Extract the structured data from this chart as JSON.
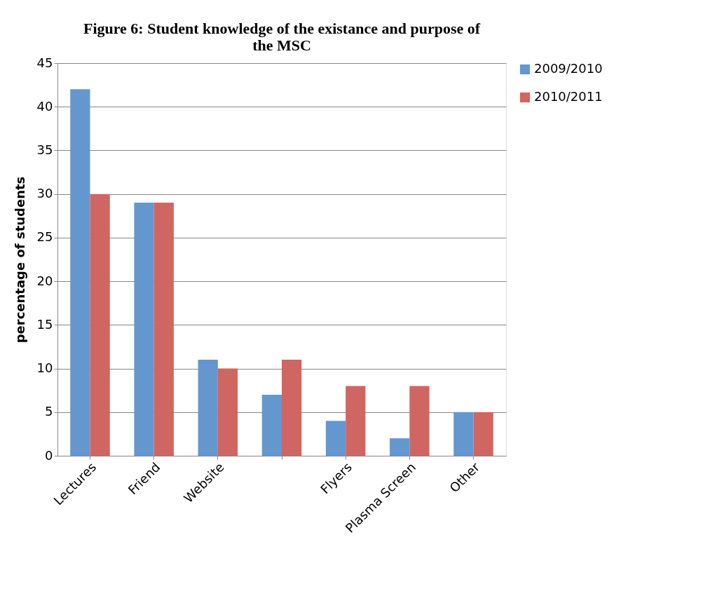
{
  "chart_data": {
    "type": "bar",
    "title": "Figure 6: Student knowledge of the existance and purpose of the MSC",
    "ylabel": "percentage of students",
    "categories": [
      "Lectures",
      "Friend",
      "Website",
      null,
      "Flyers",
      "Plasma Screen",
      "Other"
    ],
    "series": [
      {
        "name": "2009/2010",
        "color": "#6497cf",
        "values": [
          42,
          29,
          11,
          7,
          4,
          2,
          5
        ]
      },
      {
        "name": "2010/2011",
        "color": "#cf6661",
        "values": [
          30,
          29,
          10,
          11,
          8,
          8,
          5
        ]
      }
    ],
    "ylim": [
      0,
      45
    ],
    "yticks": [
      0,
      5,
      10,
      15,
      20,
      25,
      30,
      35,
      40,
      45
    ],
    "grid": "y",
    "legend": "right"
  }
}
